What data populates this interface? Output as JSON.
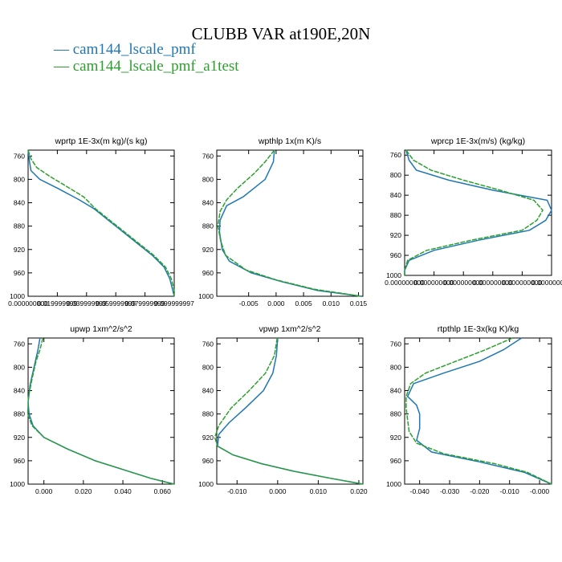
{
  "title": "CLUBB VAR at190E,20N",
  "legend": [
    {
      "label": "— cam144_lscale_pmf",
      "color": "#1f77b4"
    },
    {
      "label": "— cam144_lscale_pmf_a1test",
      "color": "#2ca02c"
    }
  ],
  "chart_data": [
    {
      "type": "line",
      "title": "wprtp  1E-3x(m kg)/(s kg)",
      "xlim": [
        0,
        0.1
      ],
      "ylim": [
        1000,
        750
      ],
      "yticks": [
        760,
        800,
        840,
        880,
        920,
        960,
        1000
      ],
      "xticks": [
        0,
        0.02,
        0.04,
        0.06,
        0.08,
        0.1
      ],
      "xtick_labels": [
        "0.000000000",
        "0.019999999",
        "0.039999999",
        "0.059999999",
        "0.079999999",
        "0.099999997"
      ],
      "series": [
        {
          "name": "cam144_lscale_pmf",
          "points": [
            [
              0.0,
              750
            ],
            [
              0.001,
              770
            ],
            [
              0.002,
              785
            ],
            [
              0.008,
              800
            ],
            [
              0.02,
              815
            ],
            [
              0.035,
              835
            ],
            [
              0.045,
              850
            ],
            [
              0.055,
              870
            ],
            [
              0.065,
              890
            ],
            [
              0.075,
              910
            ],
            [
              0.085,
              930
            ],
            [
              0.093,
              950
            ],
            [
              0.097,
              970
            ],
            [
              0.099,
              990
            ],
            [
              0.1,
              1000
            ]
          ]
        },
        {
          "name": "cam144_lscale_pmf_a1test",
          "points": [
            [
              0.0,
              750
            ],
            [
              0.002,
              765
            ],
            [
              0.006,
              780
            ],
            [
              0.015,
              795
            ],
            [
              0.025,
              810
            ],
            [
              0.038,
              830
            ],
            [
              0.046,
              850
            ],
            [
              0.056,
              870
            ],
            [
              0.066,
              890
            ],
            [
              0.076,
              910
            ],
            [
              0.086,
              930
            ],
            [
              0.094,
              950
            ],
            [
              0.098,
              970
            ],
            [
              0.1,
              990
            ],
            [
              0.1,
              1000
            ]
          ]
        }
      ]
    },
    {
      "type": "line",
      "title": "wpthlp  1x(m K)/s",
      "xlim": [
        -0.0108,
        0.0158
      ],
      "ylim": [
        1000,
        750
      ],
      "yticks": [
        760,
        800,
        840,
        880,
        920,
        960,
        1000
      ],
      "xticks": [
        -0.005,
        0,
        0.005,
        0.01,
        0.015
      ],
      "xtick_labels": [
        "-0.005",
        "0.000",
        "0.005",
        "0.010",
        "0.015"
      ],
      "series": [
        {
          "name": "cam144_lscale_pmf",
          "points": [
            [
              -0.0003,
              750
            ],
            [
              -0.0005,
              770
            ],
            [
              -0.002,
              800
            ],
            [
              -0.006,
              830
            ],
            [
              -0.009,
              845
            ],
            [
              -0.0102,
              870
            ],
            [
              -0.0103,
              890
            ],
            [
              -0.0098,
              920
            ],
            [
              -0.0085,
              940
            ],
            [
              -0.0045,
              960
            ],
            [
              0.001,
              975
            ],
            [
              0.0075,
              990
            ],
            [
              0.0155,
              1000
            ]
          ]
        },
        {
          "name": "cam144_lscale_pmf_a1test",
          "points": [
            [
              -0.0003,
              750
            ],
            [
              -0.002,
              770
            ],
            [
              -0.004,
              790
            ],
            [
              -0.007,
              815
            ],
            [
              -0.009,
              835
            ],
            [
              -0.0102,
              855
            ],
            [
              -0.0106,
              880
            ],
            [
              -0.0101,
              905
            ],
            [
              -0.0092,
              930
            ],
            [
              -0.0055,
              955
            ],
            [
              0.0,
              972
            ],
            [
              0.007,
              988
            ],
            [
              0.0155,
              1000
            ]
          ]
        }
      ]
    },
    {
      "type": "line",
      "title": "wprcp  1E-3x(m/s) (kg/kg)",
      "xlim": [
        0,
        1e-06
      ],
      "ylim": [
        1000,
        750
      ],
      "yticks": [
        760,
        800,
        840,
        880,
        920,
        960,
        1000
      ],
      "xticks": [
        0,
        2e-07,
        4e-07,
        6e-07,
        8e-07,
        1e-06
      ],
      "xtick_labels": [
        "0.000000000",
        "0.000000000",
        "0.000000000",
        "0.000000000",
        "0.000000000",
        "0.000000000"
      ],
      "series": [
        {
          "name": "cam144_lscale_pmf",
          "points": [
            [
              1e-08,
              750
            ],
            [
              3e-08,
              770
            ],
            [
              8e-08,
              790
            ],
            [
              3e-07,
              810
            ],
            [
              6e-07,
              830
            ],
            [
              9.7e-07,
              850
            ],
            [
              1e-06,
              870
            ],
            [
              9.6e-07,
              890
            ],
            [
              8.5e-07,
              910
            ],
            [
              5e-07,
              930
            ],
            [
              2e-07,
              950
            ],
            [
              3e-08,
              970
            ],
            [
              0.0,
              990
            ],
            [
              0.0,
              1000
            ]
          ]
        },
        {
          "name": "cam144_lscale_pmf_a1test",
          "points": [
            [
              1e-08,
              750
            ],
            [
              6e-08,
              770
            ],
            [
              1.8e-07,
              790
            ],
            [
              4e-07,
              810
            ],
            [
              6.5e-07,
              830
            ],
            [
              8.8e-07,
              850
            ],
            [
              9.4e-07,
              870
            ],
            [
              9e-07,
              890
            ],
            [
              8e-07,
              910
            ],
            [
              4.5e-07,
              930
            ],
            [
              1.5e-07,
              950
            ],
            [
              2e-08,
              970
            ],
            [
              0.0,
              990
            ],
            [
              0.0,
              1000
            ]
          ]
        }
      ]
    },
    {
      "type": "line",
      "title": "upwp  1xm^2/s^2",
      "xlim": [
        -0.008,
        0.066
      ],
      "ylim": [
        1000,
        750
      ],
      "yticks": [
        760,
        800,
        840,
        880,
        920,
        960,
        1000
      ],
      "xticks": [
        0,
        0.02,
        0.04,
        0.06
      ],
      "xtick_labels": [
        "0.000",
        "0.020",
        "0.040",
        "0.060"
      ],
      "series": [
        {
          "name": "cam144_lscale_pmf",
          "points": [
            [
              -0.002,
              750
            ],
            [
              -0.003,
              770
            ],
            [
              -0.005,
              800
            ],
            [
              -0.007,
              830
            ],
            [
              -0.008,
              860
            ],
            [
              -0.0075,
              880
            ],
            [
              -0.0055,
              900
            ],
            [
              0.0,
              920
            ],
            [
              0.012,
              940
            ],
            [
              0.026,
              960
            ],
            [
              0.04,
              975
            ],
            [
              0.054,
              990
            ],
            [
              0.066,
              1000
            ]
          ]
        },
        {
          "name": "cam144_lscale_pmf_a1test",
          "points": [
            [
              -0.0005,
              750
            ],
            [
              -0.002,
              770
            ],
            [
              -0.004,
              790
            ],
            [
              -0.006,
              820
            ],
            [
              -0.0078,
              850
            ],
            [
              -0.0082,
              880
            ],
            [
              -0.006,
              900
            ],
            [
              0.0,
              920
            ],
            [
              0.012,
              940
            ],
            [
              0.026,
              960
            ],
            [
              0.04,
              975
            ],
            [
              0.054,
              990
            ],
            [
              0.066,
              1000
            ]
          ]
        }
      ]
    },
    {
      "type": "line",
      "title": "vpwp  1xm^2/s^2",
      "xlim": [
        -0.015,
        0.021
      ],
      "ylim": [
        1000,
        750
      ],
      "yticks": [
        760,
        800,
        840,
        880,
        920,
        960,
        1000
      ],
      "xticks": [
        -0.01,
        0,
        0.01,
        0.02
      ],
      "xtick_labels": [
        "-0.010",
        "0.000",
        "0.010",
        "0.020"
      ],
      "series": [
        {
          "name": "cam144_lscale_pmf",
          "points": [
            [
              0.0,
              750
            ],
            [
              -0.0003,
              780
            ],
            [
              -0.0012,
              810
            ],
            [
              -0.0035,
              840
            ],
            [
              -0.008,
              870
            ],
            [
              -0.012,
              895
            ],
            [
              -0.0145,
              915
            ],
            [
              -0.0148,
              935
            ],
            [
              -0.011,
              950
            ],
            [
              -0.004,
              965
            ],
            [
              0.004,
              978
            ],
            [
              0.013,
              990
            ],
            [
              0.021,
              1000
            ]
          ]
        },
        {
          "name": "cam144_lscale_pmf_a1test",
          "points": [
            [
              -0.0001,
              750
            ],
            [
              -0.0008,
              780
            ],
            [
              -0.003,
              810
            ],
            [
              -0.007,
              840
            ],
            [
              -0.0115,
              870
            ],
            [
              -0.0145,
              900
            ],
            [
              -0.0155,
              920
            ],
            [
              -0.0148,
              935
            ],
            [
              -0.011,
              950
            ],
            [
              -0.004,
              965
            ],
            [
              0.004,
              978
            ],
            [
              0.013,
              990
            ],
            [
              0.021,
              1000
            ]
          ]
        }
      ]
    },
    {
      "type": "line",
      "title": "rtpthlp  1E-3x(kg K)/kg",
      "xlim": [
        -0.045,
        0.004
      ],
      "ylim": [
        1000,
        750
      ],
      "yticks": [
        760,
        800,
        840,
        880,
        920,
        960,
        1000
      ],
      "xticks": [
        -0.04,
        -0.03,
        -0.02,
        -0.01,
        0
      ],
      "xtick_labels": [
        "-0.040",
        "-0.030",
        "-0.020",
        "-0.010",
        "-0.000"
      ],
      "series": [
        {
          "name": "cam144_lscale_pmf",
          "points": [
            [
              -0.006,
              750
            ],
            [
              -0.012,
              770
            ],
            [
              -0.02,
              790
            ],
            [
              -0.032,
              810
            ],
            [
              -0.042,
              828
            ],
            [
              -0.044,
              850
            ],
            [
              -0.041,
              865
            ],
            [
              -0.04,
              880
            ],
            [
              -0.04,
              905
            ],
            [
              -0.041,
              925
            ],
            [
              -0.036,
              945
            ],
            [
              -0.02,
              962
            ],
            [
              -0.005,
              980
            ],
            [
              0.004,
              1000
            ]
          ]
        },
        {
          "name": "cam144_lscale_pmf_a1test",
          "points": [
            [
              -0.009,
              750
            ],
            [
              -0.018,
              770
            ],
            [
              -0.028,
              790
            ],
            [
              -0.038,
              810
            ],
            [
              -0.043,
              828
            ],
            [
              -0.0445,
              850
            ],
            [
              -0.0445,
              870
            ],
            [
              -0.044,
              890
            ],
            [
              -0.0435,
              910
            ],
            [
              -0.041,
              930
            ],
            [
              -0.032,
              948
            ],
            [
              -0.015,
              965
            ],
            [
              -0.004,
              980
            ],
            [
              0.004,
              1000
            ]
          ]
        }
      ]
    }
  ]
}
